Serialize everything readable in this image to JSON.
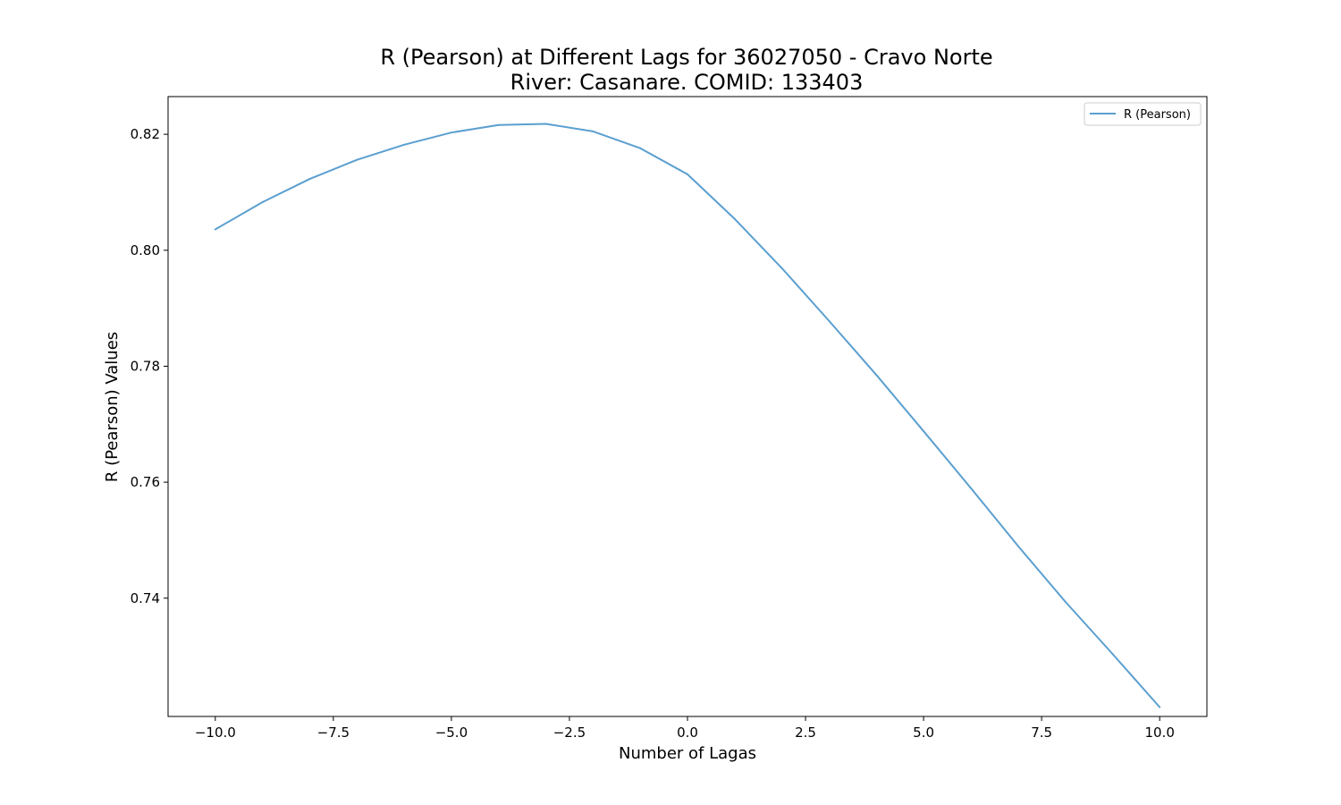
{
  "chart_data": {
    "type": "line",
    "title": "R (Pearson) at Different Lags for 36027050 - Cravo Norte",
    "subtitle": "River: Casanare. COMID: 133403",
    "xlabel": "Number of Lagas",
    "ylabel": "R (Pearson) Values",
    "xlim": [
      -11.0,
      11.0
    ],
    "ylim": [
      0.7196,
      0.8265
    ],
    "xticks": [
      -10.0,
      -7.5,
      -5.0,
      -2.5,
      0.0,
      2.5,
      5.0,
      7.5,
      10.0
    ],
    "xtick_labels": [
      "−10.0",
      "−7.5",
      "−5.0",
      "−2.5",
      "0.0",
      "2.5",
      "5.0",
      "7.5",
      "10.0"
    ],
    "yticks": [
      0.74,
      0.76,
      0.78,
      0.8,
      0.82
    ],
    "ytick_labels": [
      "0.74",
      "0.76",
      "0.78",
      "0.80",
      "0.82"
    ],
    "grid": false,
    "legend_position": "top-right",
    "series": [
      {
        "name": "R (Pearson)",
        "color": "#5b9fd0",
        "x": [
          -10,
          -9,
          -8,
          -7,
          -6,
          -5,
          -4,
          -3,
          -2,
          -1,
          0,
          1,
          2,
          3,
          4,
          5,
          6,
          7,
          8,
          9,
          10
        ],
        "values": [
          0.8036,
          0.8083,
          0.8123,
          0.8156,
          0.8182,
          0.8203,
          0.8216,
          0.8218,
          0.8205,
          0.8176,
          0.8131,
          0.8054,
          0.7969,
          0.7878,
          0.7785,
          0.7688,
          0.759,
          0.749,
          0.7394,
          0.7304,
          0.7212
        ]
      }
    ]
  }
}
